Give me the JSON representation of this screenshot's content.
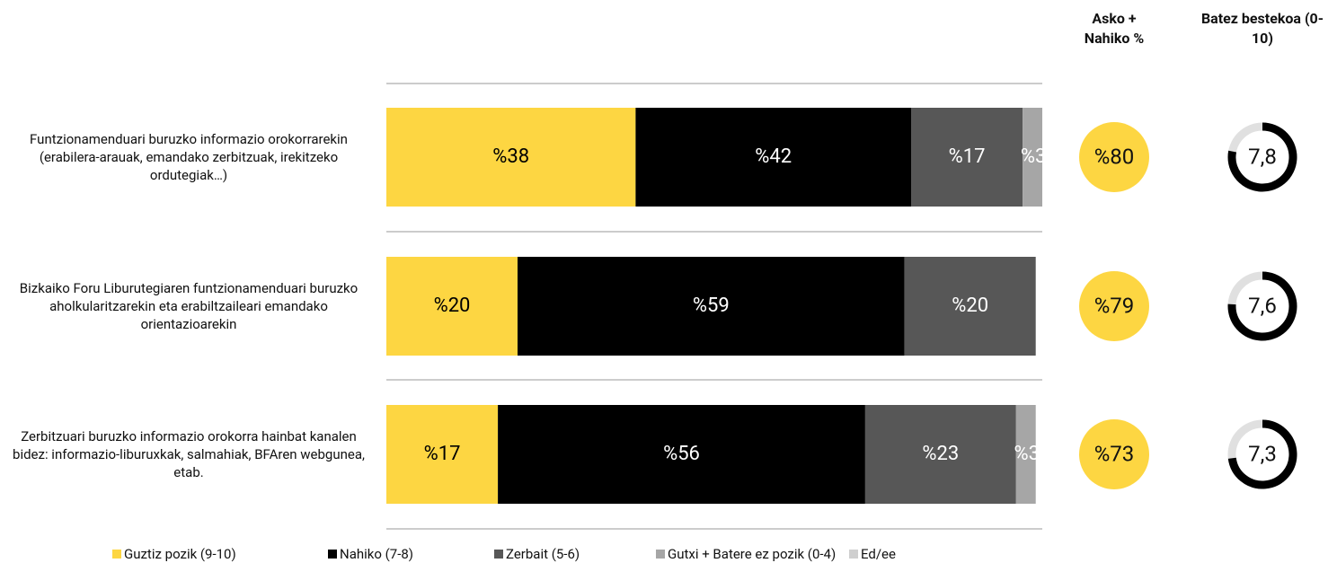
{
  "chart_data": {
    "type": "bar",
    "orientation": "horizontal",
    "stacked": true,
    "categories": [
      "Funtzionamenduari buruzko informazio orokorrarekin (erabilera-arauak, emandako zerbitzuak, irekitzeko ordutegiak…)",
      "Bizkaiko Foru Liburutegiaren funtzionamenduari buruzko aholkularitzarekin eta erabiltzaileari emandako orientazioarekin",
      "Zerbitzuari buruzko informazio orokorra hainbat kanalen bidez: informazio-liburuxkak, salmahiak, BFAren webgunea, etab."
    ],
    "series": [
      {
        "name": "Guztiz pozik (9-10)",
        "color": "#fdd642",
        "label_color": "#000000",
        "values": [
          38,
          20,
          17
        ],
        "value_labels": [
          "%38",
          "%20",
          "%17"
        ]
      },
      {
        "name": "Nahiko (7-8)",
        "color": "#000000",
        "label_color": "#ffffff",
        "values": [
          42,
          59,
          56
        ],
        "value_labels": [
          "%42",
          "%59",
          "%56"
        ]
      },
      {
        "name": "Zerbait (5-6)",
        "color": "#575757",
        "label_color": "#ffffff",
        "values": [
          17,
          20,
          23
        ],
        "value_labels": [
          "%17",
          "%20",
          "%23"
        ]
      },
      {
        "name": "Gutxi + Batere ez pozik (0-4)",
        "color": "#a6a6a6",
        "label_color": "#ffffff",
        "values": [
          3,
          null,
          3
        ],
        "value_labels": [
          "%3",
          null,
          "%3"
        ]
      },
      {
        "name": "Ed/ee",
        "color": "#cfcfcf",
        "label_color": "#ffffff",
        "values": [
          null,
          null,
          null
        ],
        "value_labels": [
          null,
          null,
          null
        ]
      }
    ],
    "xlim": [
      0,
      100
    ],
    "columns": [
      {
        "title": "Asko + Nahiko %",
        "kind": "circle",
        "color": "#fdd642",
        "values": [
          80,
          79,
          73
        ],
        "value_labels": [
          "%80",
          "%79",
          "%73"
        ]
      },
      {
        "title": "Batez bestekoa (0-10)",
        "kind": "ring",
        "color": "#000000",
        "track": "#e0e0e0",
        "lim": [
          0,
          10
        ],
        "values": [
          7.8,
          7.6,
          7.3
        ],
        "value_labels": [
          "7,8",
          "7,6",
          "7,3"
        ]
      }
    ]
  }
}
